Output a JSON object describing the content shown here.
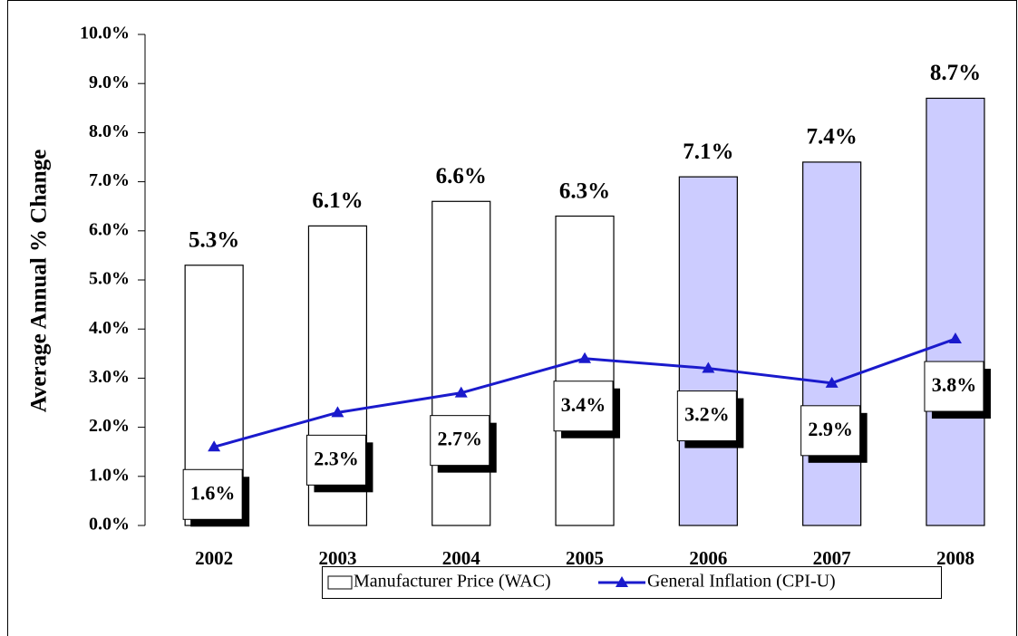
{
  "chart_data": {
    "type": "bar",
    "y_label": "Average Annual % Change",
    "categories": [
      "2002",
      "2003",
      "2004",
      "2005",
      "2006",
      "2007",
      "2008"
    ],
    "series": [
      {
        "name": "Manufacturer Price (WAC)",
        "type": "bar",
        "colors": [
          "#ffffff",
          "#ffffff",
          "#ffffff",
          "#ffffff",
          "#ccccff",
          "#ccccff",
          "#ccccff"
        ],
        "values": [
          5.3,
          6.1,
          6.6,
          6.3,
          7.1,
          7.4,
          8.7
        ],
        "value_labels": [
          "5.3%",
          "6.1%",
          "6.6%",
          "6.3%",
          "7.1%",
          "7.4%",
          "8.7%"
        ]
      },
      {
        "name": "General Inflation (CPI-U)",
        "type": "line",
        "color": "#1a1acc",
        "values": [
          1.6,
          2.3,
          2.7,
          3.4,
          3.2,
          2.9,
          3.8
        ],
        "value_labels": [
          "1.6%",
          "2.3%",
          "2.7%",
          "3.4%",
          "3.2%",
          "2.9%",
          "3.8%"
        ]
      }
    ],
    "ylim": [
      0,
      10
    ],
    "yticks": [
      {
        "value": 0,
        "label": "0.0%"
      },
      {
        "value": 1,
        "label": "1.0%"
      },
      {
        "value": 2,
        "label": "2.0%"
      },
      {
        "value": 3,
        "label": "3.0%"
      },
      {
        "value": 4,
        "label": "4.0%"
      },
      {
        "value": 5,
        "label": "5.0%"
      },
      {
        "value": 6,
        "label": "6.0%"
      },
      {
        "value": 7,
        "label": "7.0%"
      },
      {
        "value": 8,
        "label": "8.0%"
      },
      {
        "value": 9,
        "label": "9.0%"
      },
      {
        "value": 10,
        "label": "10.0%"
      }
    ],
    "legend": "bottom"
  }
}
